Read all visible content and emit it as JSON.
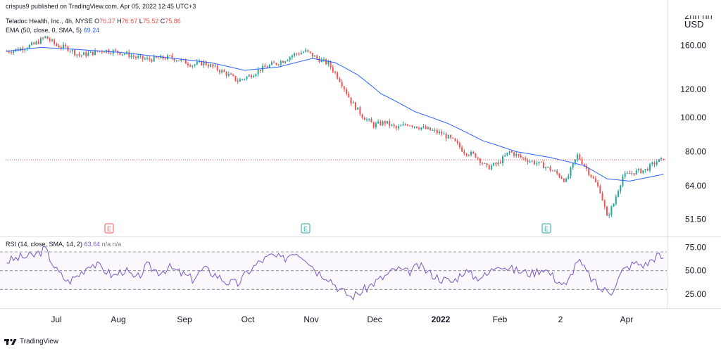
{
  "publisher": "crispus9 published on TradingView.com, Apr 05, 2022 12:45 UTC+3",
  "header": {
    "symbol": "Teladoc Health, Inc., 4h, NYSE",
    "o_label": "O",
    "o": "76.37",
    "h_label": "H",
    "h": "76.67",
    "l_label": "L",
    "l": "75.52",
    "c_label": "C",
    "c": "75.86",
    "ema_label": "EMA (50, close, 0, SMA, 5)",
    "ema_value": "69.24",
    "rsi_label": "RSI (14, close, SMA, 14, 2)",
    "rsi_value": "63.64",
    "rsi_na1": "n/a",
    "rsi_na2": "n/a",
    "currency_top": "2nn nn",
    "currency": "USD"
  },
  "footer": {
    "brand": "TradingView"
  },
  "colors": {
    "up": "#26a69a",
    "down": "#ef5350",
    "ema": "#2962ff",
    "rsi": "#7e57c2",
    "last_price": "#ef5350"
  },
  "chart_data": [
    {
      "type": "candlestick",
      "title": "",
      "yscale": "log",
      "ylim": [
        46,
        200
      ],
      "yticks": [
        "160.00",
        "120.00",
        "100.00",
        "80.00",
        "64.00",
        "51.50"
      ],
      "ytick_values": [
        160,
        120,
        100,
        80,
        64,
        51.5
      ],
      "xticks": [
        "Jul",
        "Aug",
        "Sep",
        "Oct",
        "Nov",
        "Dec",
        "2022",
        "Feb",
        "2",
        "Apr"
      ],
      "bold_xticks": [
        "2022"
      ],
      "earnings_markers": [
        {
          "label": "E",
          "kind": "negative"
        },
        {
          "label": "E",
          "kind": "positive"
        },
        {
          "label": "E",
          "kind": "positive"
        }
      ],
      "close_path": [
        {
          "i": 0,
          "v": 154
        },
        {
          "i": 5,
          "v": 156
        },
        {
          "i": 12,
          "v": 161
        },
        {
          "i": 17,
          "v": 169
        },
        {
          "i": 22,
          "v": 160
        },
        {
          "i": 27,
          "v": 157
        },
        {
          "i": 32,
          "v": 150
        },
        {
          "i": 37,
          "v": 152
        },
        {
          "i": 42,
          "v": 155
        },
        {
          "i": 47,
          "v": 154
        },
        {
          "i": 52,
          "v": 152
        },
        {
          "i": 57,
          "v": 148
        },
        {
          "i": 62,
          "v": 146
        },
        {
          "i": 67,
          "v": 147
        },
        {
          "i": 72,
          "v": 148
        },
        {
          "i": 77,
          "v": 145
        },
        {
          "i": 82,
          "v": 141
        },
        {
          "i": 87,
          "v": 143
        },
        {
          "i": 92,
          "v": 138
        },
        {
          "i": 97,
          "v": 133
        },
        {
          "i": 102,
          "v": 127
        },
        {
          "i": 107,
          "v": 131
        },
        {
          "i": 112,
          "v": 137
        },
        {
          "i": 117,
          "v": 141
        },
        {
          "i": 122,
          "v": 145
        },
        {
          "i": 127,
          "v": 151
        },
        {
          "i": 132,
          "v": 154
        },
        {
          "i": 137,
          "v": 147
        },
        {
          "i": 142,
          "v": 142
        },
        {
          "i": 147,
          "v": 128
        },
        {
          "i": 152,
          "v": 111
        },
        {
          "i": 157,
          "v": 101
        },
        {
          "i": 162,
          "v": 95
        },
        {
          "i": 167,
          "v": 97
        },
        {
          "i": 172,
          "v": 93
        },
        {
          "i": 177,
          "v": 96
        },
        {
          "i": 182,
          "v": 94
        },
        {
          "i": 187,
          "v": 92
        },
        {
          "i": 192,
          "v": 90
        },
        {
          "i": 197,
          "v": 86
        },
        {
          "i": 202,
          "v": 80
        },
        {
          "i": 207,
          "v": 78
        },
        {
          "i": 212,
          "v": 72
        },
        {
          "i": 217,
          "v": 74
        },
        {
          "i": 222,
          "v": 80
        },
        {
          "i": 227,
          "v": 77
        },
        {
          "i": 232,
          "v": 75
        },
        {
          "i": 237,
          "v": 73
        },
        {
          "i": 242,
          "v": 70
        },
        {
          "i": 247,
          "v": 66
        },
        {
          "i": 252,
          "v": 78
        },
        {
          "i": 257,
          "v": 70
        },
        {
          "i": 262,
          "v": 62
        },
        {
          "i": 265,
          "v": 52
        },
        {
          "i": 268,
          "v": 57
        },
        {
          "i": 272,
          "v": 68
        },
        {
          "i": 277,
          "v": 70
        },
        {
          "i": 282,
          "v": 71
        },
        {
          "i": 287,
          "v": 75
        },
        {
          "i": 290,
          "v": 76
        }
      ],
      "ema_path": [
        {
          "i": 0,
          "v": 154
        },
        {
          "i": 15,
          "v": 158
        },
        {
          "i": 30,
          "v": 156
        },
        {
          "i": 50,
          "v": 153
        },
        {
          "i": 70,
          "v": 148
        },
        {
          "i": 90,
          "v": 143
        },
        {
          "i": 105,
          "v": 136
        },
        {
          "i": 120,
          "v": 139
        },
        {
          "i": 135,
          "v": 147
        },
        {
          "i": 145,
          "v": 143
        },
        {
          "i": 155,
          "v": 132
        },
        {
          "i": 165,
          "v": 117
        },
        {
          "i": 180,
          "v": 104
        },
        {
          "i": 195,
          "v": 96
        },
        {
          "i": 210,
          "v": 86
        },
        {
          "i": 225,
          "v": 80
        },
        {
          "i": 240,
          "v": 77
        },
        {
          "i": 255,
          "v": 73
        },
        {
          "i": 265,
          "v": 67
        },
        {
          "i": 275,
          "v": 66
        },
        {
          "i": 290,
          "v": 69
        }
      ],
      "last_price": 75.86
    },
    {
      "type": "line",
      "title": "",
      "ylim": [
        10,
        85
      ],
      "yticks": [
        "75.00",
        "50.00",
        "25.00"
      ],
      "ytick_values": [
        75,
        50,
        25
      ],
      "bands": [
        70,
        50,
        30
      ],
      "x": [
        0,
        6,
        12,
        17,
        22,
        27,
        32,
        37,
        42,
        47,
        52,
        57,
        62,
        67,
        72,
        77,
        82,
        87,
        92,
        97,
        102,
        107,
        112,
        117,
        122,
        127,
        132,
        137,
        142,
        147,
        152,
        157,
        162,
        167,
        172,
        177,
        182,
        187,
        192,
        197,
        202,
        207,
        212,
        217,
        222,
        227,
        232,
        237,
        242,
        247,
        252,
        257,
        262,
        267,
        272,
        277,
        282,
        287,
        290
      ],
      "values": [
        60,
        64,
        66,
        73,
        50,
        38,
        46,
        58,
        53,
        44,
        51,
        40,
        55,
        49,
        53,
        47,
        41,
        52,
        46,
        38,
        36,
        50,
        60,
        66,
        62,
        71,
        64,
        49,
        43,
        30,
        22,
        28,
        37,
        44,
        52,
        48,
        55,
        47,
        41,
        38,
        50,
        43,
        45,
        58,
        52,
        49,
        47,
        53,
        42,
        33,
        62,
        45,
        30,
        28,
        50,
        58,
        56,
        66,
        63.64
      ],
      "series": [
        {
          "name": "RSI",
          "values": "see values"
        }
      ]
    }
  ]
}
